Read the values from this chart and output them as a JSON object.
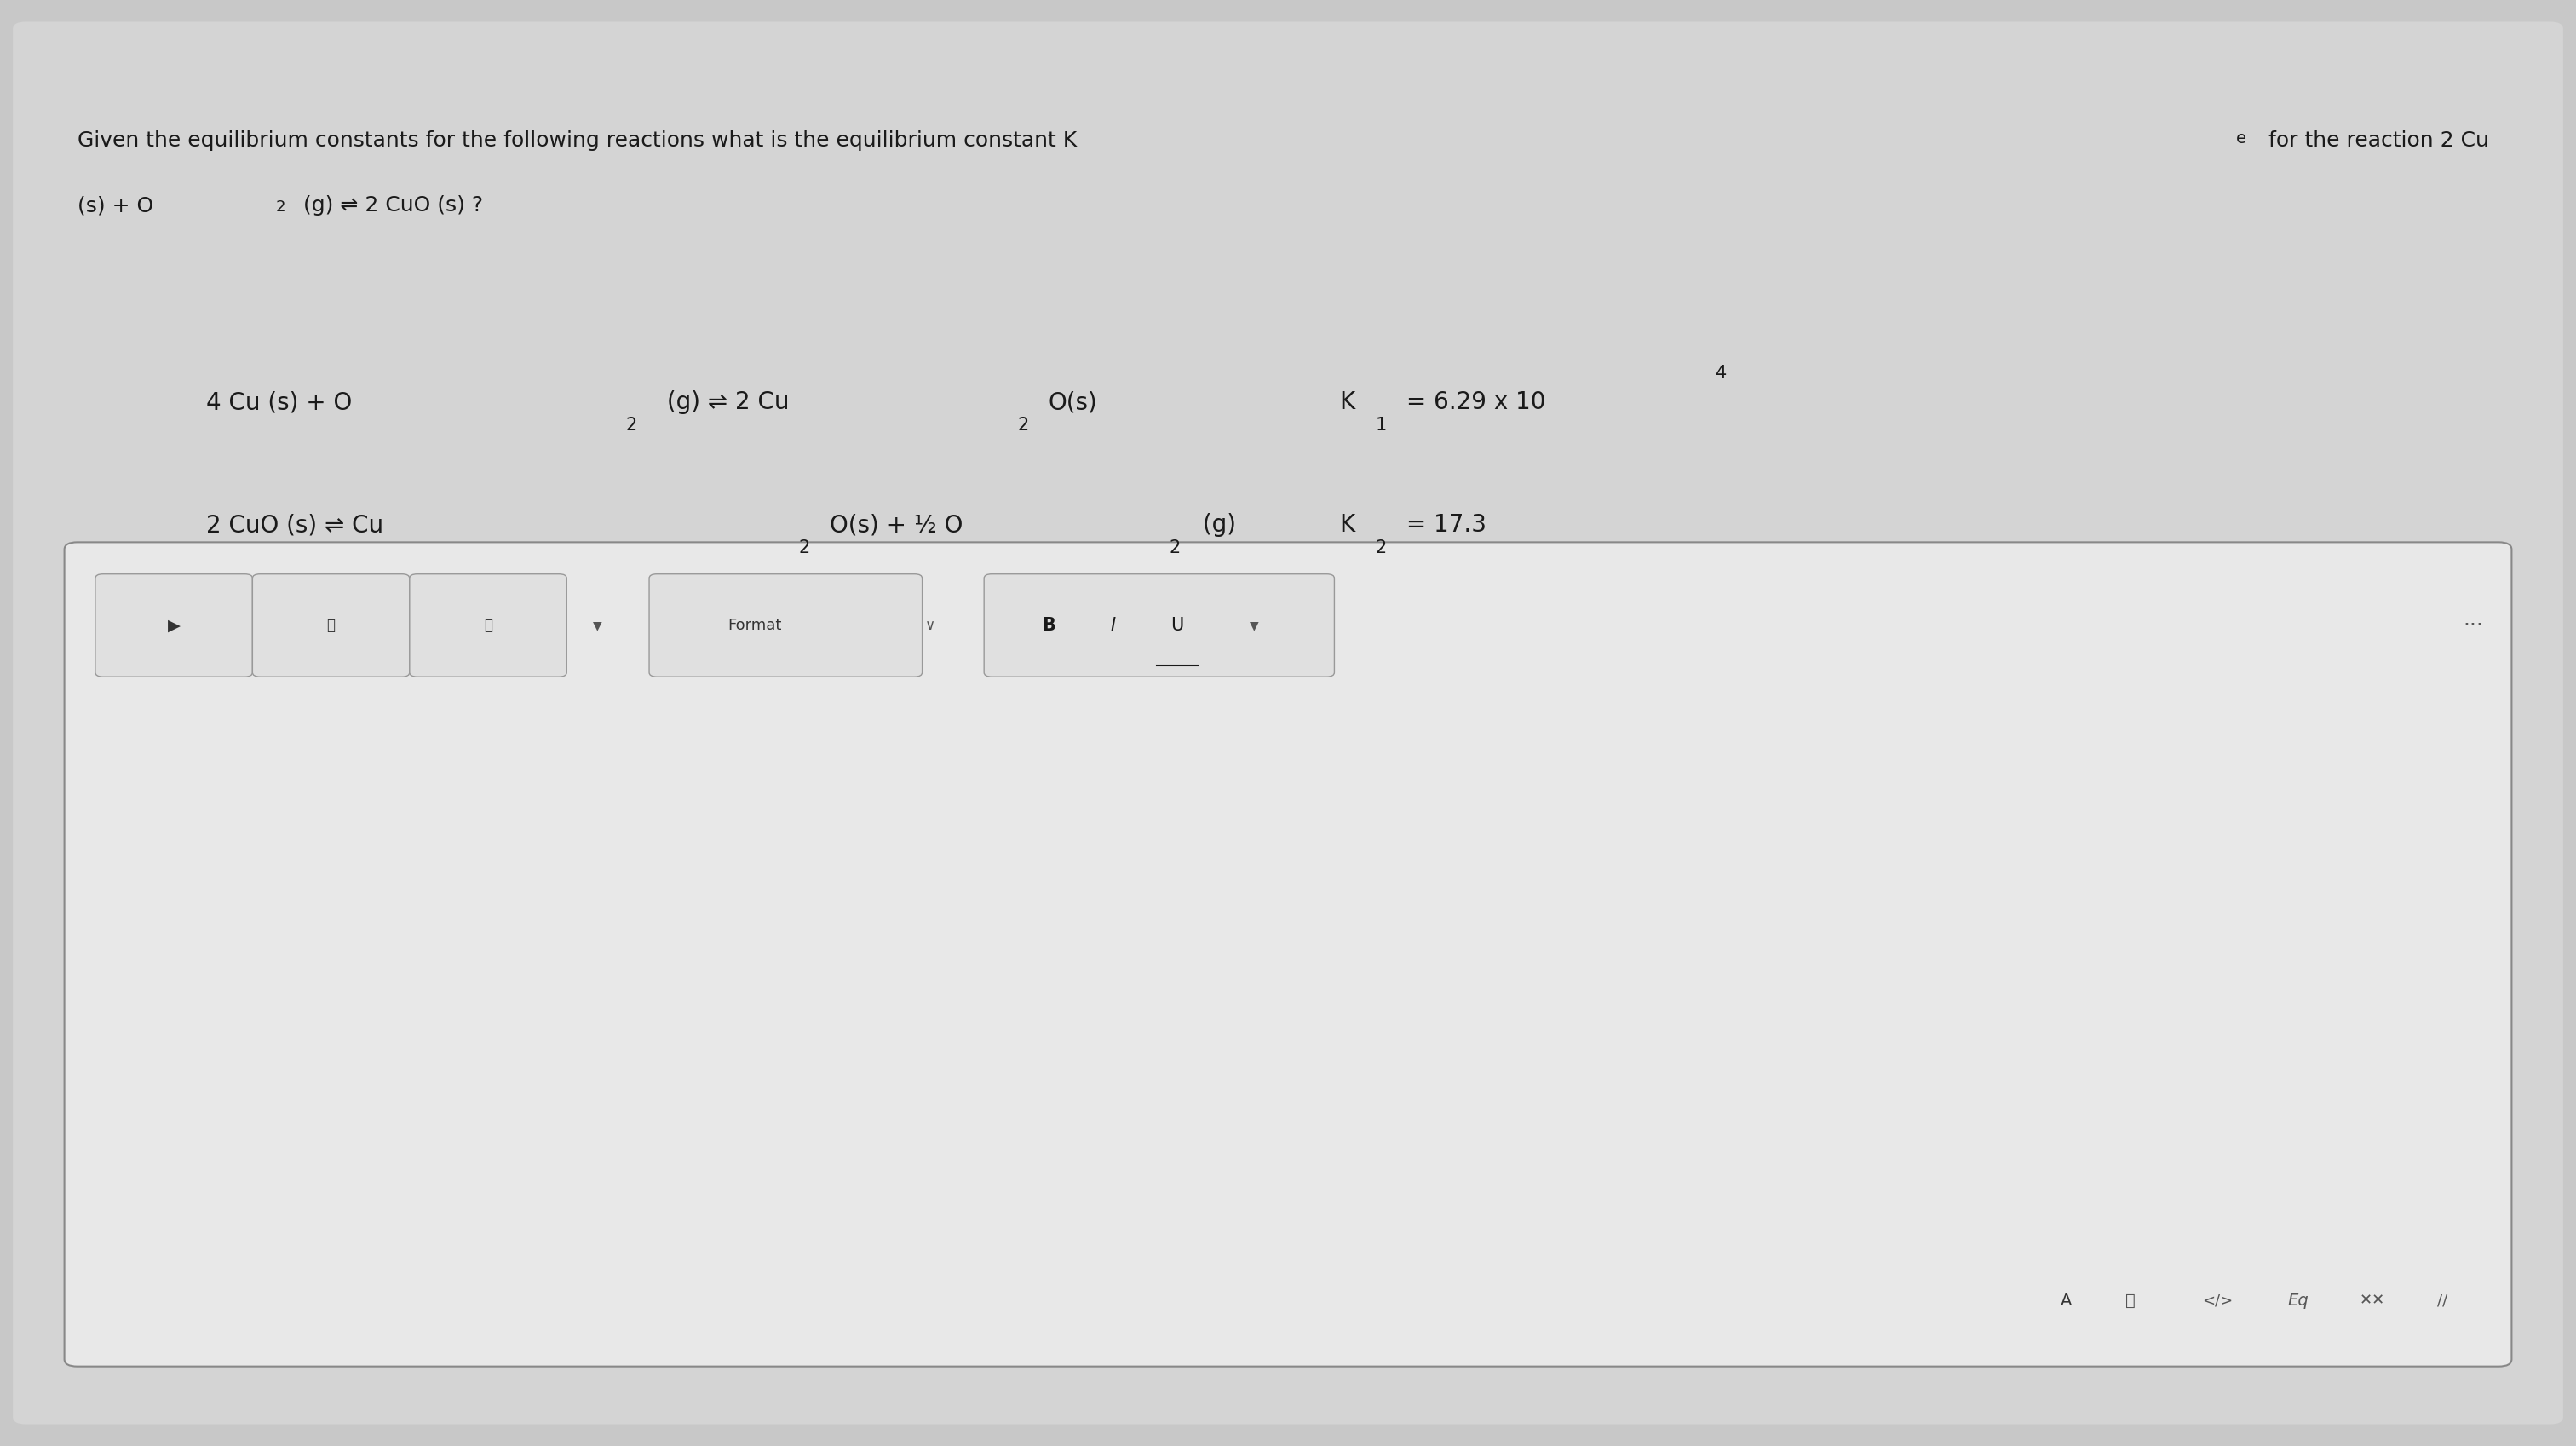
{
  "background_color": "#c8c8c8",
  "page_bg": "#d8d8d8",
  "header_text_line1": "Given the equilibrium constants for the following reactions what is the equilibrium constant K",
  "header_text_line1_sub": "e",
  "header_text_line1_end": " for the reaction 2 Cu",
  "header_text_line2": "(s) + O",
  "header_text_line2_sub": "2",
  "header_text_line2_end": " (g) ⇌ 2 CuO (s) ?",
  "reaction1_left": "4 Cu (s) + O",
  "reaction1_left_sub": "2",
  "reaction1_left_mid": " (g) ⇌ 2 Cu",
  "reaction1_left_sub2": "2",
  "reaction1_left_end": "O(s)",
  "reaction1_right": "K",
  "reaction1_right_sub": "1",
  "reaction1_right_end": " = 6.29 x 10",
  "reaction1_exp": "4",
  "reaction2_left": "2 CuO (s) ⇌ Cu",
  "reaction2_left_sub": "2",
  "reaction2_left_mid": "O(s) + ½ O",
  "reaction2_left_sub2": "2",
  "reaction2_left_end": " (g)",
  "reaction2_right": "K",
  "reaction2_right_sub": "2",
  "reaction2_right_end": " = 17.3",
  "toolbar_bg": "#f0f0f0",
  "toolbar_border": "#b0b0b0",
  "text_color": "#1a1a1a",
  "font_size_header": 18,
  "font_size_reaction": 20,
  "font_size_toolbar": 16
}
